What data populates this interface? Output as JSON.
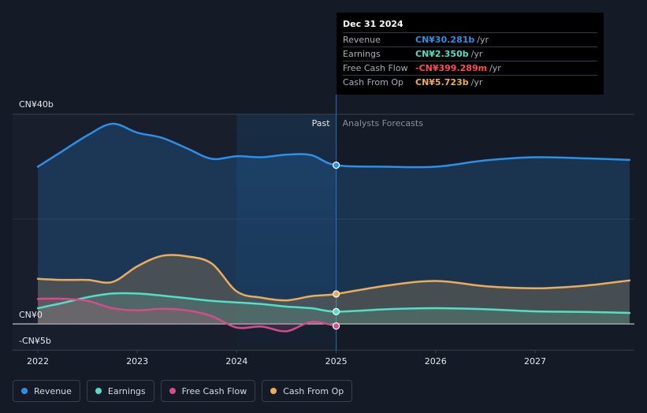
{
  "colors": {
    "revenue": "#2e8fe6",
    "earnings": "#4fe0c6",
    "free_cash_flow": "#d34d8c",
    "cash_from_op": "#e9ad5c",
    "negative": "#ff4d4d"
  },
  "tooltip": {
    "date": "Dec 31 2024",
    "rows": [
      {
        "name": "Revenue",
        "value": "CN¥30.281b",
        "unit": "/yr",
        "color": "#2e8fe6"
      },
      {
        "name": "Earnings",
        "value": "CN¥2.350b",
        "unit": "/yr",
        "color": "#4fe0c6"
      },
      {
        "name": "Free Cash Flow",
        "value": "-CN¥399.289m",
        "unit": "/yr",
        "color": "#ff4d4d"
      },
      {
        "name": "Cash From Op",
        "value": "CN¥5.723b",
        "unit": "/yr",
        "color": "#e9ad5c"
      }
    ]
  },
  "legend": [
    {
      "label": "Revenue",
      "color": "#2e8fe6",
      "icon": "revenue-dot-icon"
    },
    {
      "label": "Earnings",
      "color": "#4fe0c6",
      "icon": "earnings-dot-icon"
    },
    {
      "label": "Free Cash Flow",
      "color": "#d34d8c",
      "icon": "free-cash-flow-dot-icon"
    },
    {
      "label": "Cash From Op",
      "color": "#e9ad5c",
      "icon": "cash-from-op-dot-icon"
    }
  ],
  "chart_data": {
    "type": "line",
    "title": "",
    "xlabel": "",
    "ylabel": "",
    "units": "CN¥ billions",
    "ylim": [
      -5,
      40
    ],
    "xlim": [
      2021.9,
      2027.95
    ],
    "y_tick_labels": [
      {
        "value": 40,
        "label": "CN¥40b"
      },
      {
        "value": 0,
        "label": "CN¥0"
      },
      {
        "value": -5,
        "label": "-CN¥5b"
      }
    ],
    "x_ticks": [
      {
        "value": 2022,
        "label": "2022"
      },
      {
        "value": 2023,
        "label": "2023"
      },
      {
        "value": 2024,
        "label": "2024"
      },
      {
        "value": 2025,
        "label": "2025"
      },
      {
        "value": 2026,
        "label": "2026"
      },
      {
        "value": 2027,
        "label": "2027"
      }
    ],
    "divider_x": 2025,
    "highlight_start_x": 2024,
    "past_label": "Past",
    "forecast_label": "Analysts Forecasts",
    "series": [
      {
        "name": "Revenue",
        "key": "revenue",
        "filled": true,
        "points": [
          [
            2022.0,
            30.0
          ],
          [
            2022.25,
            33.0
          ],
          [
            2022.5,
            36.0
          ],
          [
            2022.75,
            38.2
          ],
          [
            2023.0,
            36.5
          ],
          [
            2023.25,
            35.5
          ],
          [
            2023.5,
            33.5
          ],
          [
            2023.75,
            31.5
          ],
          [
            2024.0,
            32.0
          ],
          [
            2024.25,
            31.8
          ],
          [
            2024.5,
            32.3
          ],
          [
            2024.75,
            32.2
          ],
          [
            2025.0,
            30.28
          ],
          [
            2025.5,
            30.0
          ],
          [
            2026.0,
            30.0
          ],
          [
            2026.5,
            31.2
          ],
          [
            2027.0,
            31.8
          ],
          [
            2027.5,
            31.6
          ],
          [
            2027.95,
            31.3
          ]
        ]
      },
      {
        "name": "Earnings",
        "key": "earnings",
        "filled": true,
        "points": [
          [
            2022.0,
            3.0
          ],
          [
            2022.25,
            4.0
          ],
          [
            2022.5,
            5.1
          ],
          [
            2022.75,
            5.8
          ],
          [
            2023.0,
            5.8
          ],
          [
            2023.25,
            5.4
          ],
          [
            2023.5,
            4.9
          ],
          [
            2023.75,
            4.4
          ],
          [
            2024.0,
            4.1
          ],
          [
            2024.25,
            3.8
          ],
          [
            2024.5,
            3.3
          ],
          [
            2024.75,
            3.0
          ],
          [
            2025.0,
            2.35
          ],
          [
            2025.5,
            2.8
          ],
          [
            2026.0,
            3.0
          ],
          [
            2026.5,
            2.8
          ],
          [
            2027.0,
            2.4
          ],
          [
            2027.5,
            2.3
          ],
          [
            2027.95,
            2.1
          ]
        ]
      },
      {
        "name": "Free Cash Flow",
        "key": "free_cash_flow",
        "filled": true,
        "points": [
          [
            2022.0,
            4.8
          ],
          [
            2022.25,
            4.8
          ],
          [
            2022.5,
            4.4
          ],
          [
            2022.75,
            3.0
          ],
          [
            2023.0,
            2.6
          ],
          [
            2023.25,
            2.9
          ],
          [
            2023.5,
            2.6
          ],
          [
            2023.75,
            1.5
          ],
          [
            2024.0,
            -0.7
          ],
          [
            2024.25,
            -0.5
          ],
          [
            2024.5,
            -1.4
          ],
          [
            2024.75,
            0.4
          ],
          [
            2025.0,
            -0.4
          ]
        ]
      },
      {
        "name": "Cash From Op",
        "key": "cash_from_op",
        "filled": true,
        "points": [
          [
            2022.0,
            8.6
          ],
          [
            2022.25,
            8.4
          ],
          [
            2022.5,
            8.4
          ],
          [
            2022.75,
            8.0
          ],
          [
            2023.0,
            11.0
          ],
          [
            2023.25,
            13.0
          ],
          [
            2023.5,
            12.9
          ],
          [
            2023.75,
            11.5
          ],
          [
            2024.0,
            6.2
          ],
          [
            2024.25,
            5.0
          ],
          [
            2024.5,
            4.5
          ],
          [
            2024.75,
            5.3
          ],
          [
            2025.0,
            5.72
          ],
          [
            2025.5,
            7.3
          ],
          [
            2026.0,
            8.2
          ],
          [
            2026.5,
            7.2
          ],
          [
            2027.0,
            6.8
          ],
          [
            2027.5,
            7.3
          ],
          [
            2027.95,
            8.3
          ]
        ]
      }
    ],
    "highlight_points": [
      {
        "key": "revenue",
        "x": 2025,
        "y": 30.28
      },
      {
        "key": "cash_from_op",
        "x": 2025,
        "y": 5.72
      },
      {
        "key": "earnings",
        "x": 2025,
        "y": 2.35
      },
      {
        "key": "free_cash_flow",
        "x": 2025,
        "y": -0.4
      }
    ]
  }
}
